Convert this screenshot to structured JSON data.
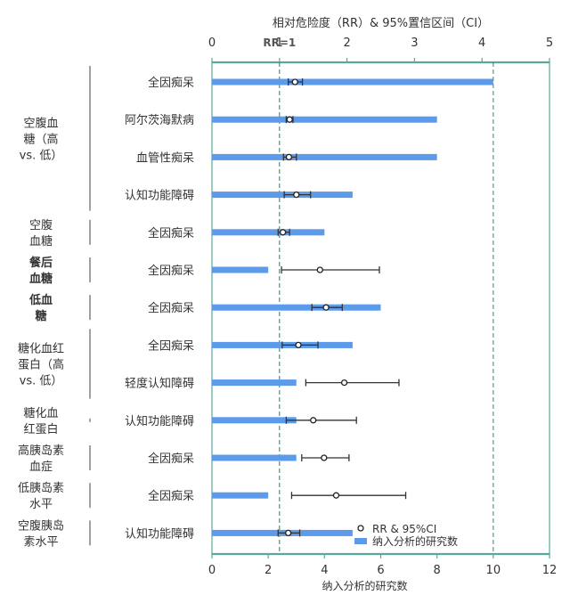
{
  "chart_data": {
    "type": "forest",
    "title": "相对危险度（RR）& 95%置信区间（CI）",
    "xlabel": "纳入分析的研究数",
    "top_axis": {
      "min": 0,
      "max": 5,
      "ticks": [
        0,
        1,
        2,
        3,
        4,
        5
      ]
    },
    "bottom_axis": {
      "min": 0,
      "max": 12,
      "ticks": [
        0,
        2,
        4,
        6,
        8,
        10,
        12
      ]
    },
    "reference_line": {
      "label": "RR=1",
      "value": 1
    },
    "study_count_reference": 10,
    "legend": {
      "rr_label": "RR & 95%CI",
      "bar_label": "纳入分析的研究数",
      "position": "bottom-right"
    },
    "colors": {
      "bar": "#5b9bea",
      "ref_line": "#2e8b7a",
      "frame": "#5aa89a",
      "ci": "#333333"
    },
    "groups": [
      {
        "label": [
          "空腹血",
          "糖（高",
          "vs. 低）"
        ],
        "rows": [
          0,
          3
        ],
        "bar_style": "long"
      },
      {
        "label": [
          "空腹",
          "血糖"
        ],
        "rows": [
          4,
          4
        ],
        "bar_style": "short"
      },
      {
        "label": [
          "餐后",
          "血糖"
        ],
        "rows": [
          5,
          5
        ],
        "bar_style": "short",
        "bold": true
      },
      {
        "label": [
          "低血",
          "糖"
        ],
        "rows": [
          6,
          6
        ],
        "bar_style": "short",
        "bold": true
      },
      {
        "label": [
          "糖化血红",
          "蛋白（高",
          "vs. 低）"
        ],
        "rows": [
          7,
          8
        ],
        "bar_style": "long"
      },
      {
        "label": [
          "糖化血",
          "红蛋白"
        ],
        "rows": [
          9,
          9
        ],
        "bar_style": "tick"
      },
      {
        "label": [
          "高胰岛素",
          "血症"
        ],
        "rows": [
          10,
          10
        ],
        "bar_style": "short"
      },
      {
        "label": [
          "低胰岛素",
          "水平"
        ],
        "rows": [
          11,
          11
        ],
        "bar_style": "short"
      },
      {
        "label": [
          "空腹胰岛",
          "素水平"
        ],
        "rows": [
          12,
          12
        ],
        "bar_style": "short"
      }
    ],
    "rows": [
      {
        "outcome": "全因痴呆",
        "studies": 10,
        "rr": 1.23,
        "ci": [
          1.13,
          1.34
        ]
      },
      {
        "outcome": "阿尔茨海默病",
        "studies": 8,
        "rr": 1.15,
        "ci": [
          1.1,
          1.2
        ]
      },
      {
        "outcome": "血管性痴呆",
        "studies": 8,
        "rr": 1.14,
        "ci": [
          1.06,
          1.25
        ]
      },
      {
        "outcome": "认知功能障碍",
        "studies": 5,
        "rr": 1.25,
        "ci": [
          1.07,
          1.46
        ]
      },
      {
        "outcome": "全因痴呆",
        "studies": 4,
        "rr": 1.05,
        "ci": [
          0.98,
          1.15
        ]
      },
      {
        "outcome": "全因痴呆",
        "studies": 2,
        "rr": 1.6,
        "ci": [
          1.03,
          2.48
        ]
      },
      {
        "outcome": "全因痴呆",
        "studies": 6,
        "rr": 1.69,
        "ci": [
          1.48,
          1.93
        ]
      },
      {
        "outcome": "全因痴呆",
        "studies": 5,
        "rr": 1.28,
        "ci": [
          1.04,
          1.57
        ]
      },
      {
        "outcome": "轻度认知障碍",
        "studies": 3,
        "rr": 1.96,
        "ci": [
          1.39,
          2.77
        ]
      },
      {
        "outcome": "认知功能障碍",
        "studies": 3,
        "rr": 1.5,
        "ci": [
          1.1,
          2.14
        ]
      },
      {
        "outcome": "全因痴呆",
        "studies": 3,
        "rr": 1.66,
        "ci": [
          1.33,
          2.03
        ]
      },
      {
        "outcome": "全因痴呆",
        "studies": 2,
        "rr": 1.84,
        "ci": [
          1.18,
          2.87
        ]
      },
      {
        "outcome": "认知功能障碍",
        "studies": 5,
        "rr": 1.13,
        "ci": [
          0.98,
          1.3
        ]
      }
    ]
  }
}
